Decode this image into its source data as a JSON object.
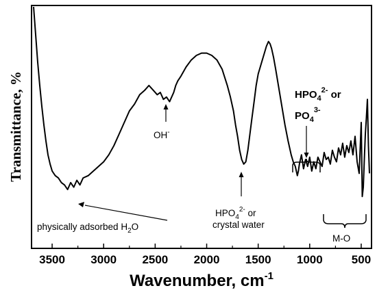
{
  "chart_data": {
    "type": "line",
    "xlabel": "Wavenumber, cm",
    "xlabel_sup": "-1",
    "ylabel": "Transmittance, %",
    "xlim": [
      3700,
      400
    ],
    "x_inverted": true,
    "xticks": [
      3500,
      3000,
      2500,
      2000,
      1500,
      1000,
      500
    ],
    "y_ticks_shown": false,
    "grid": false,
    "series": [
      {
        "color": "#000000",
        "x": [
          3680,
          3660,
          3640,
          3620,
          3600,
          3580,
          3560,
          3540,
          3520,
          3500,
          3470,
          3440,
          3410,
          3380,
          3350,
          3320,
          3290,
          3260,
          3230,
          3200,
          3150,
          3100,
          3050,
          3000,
          2950,
          2900,
          2850,
          2800,
          2750,
          2700,
          2650,
          2600,
          2560,
          2520,
          2480,
          2450,
          2420,
          2390,
          2360,
          2340,
          2320,
          2300,
          2280,
          2250,
          2200,
          2150,
          2100,
          2050,
          2000,
          1950,
          1900,
          1850,
          1800,
          1770,
          1740,
          1720,
          1700,
          1680,
          1660,
          1640,
          1620,
          1600,
          1580,
          1560,
          1540,
          1520,
          1500,
          1480,
          1460,
          1440,
          1420,
          1400,
          1385,
          1370,
          1350,
          1330,
          1300,
          1270,
          1240,
          1210,
          1180,
          1160,
          1140,
          1120,
          1110,
          1100,
          1080,
          1060,
          1040,
          1020,
          1000,
          980,
          960,
          940,
          920,
          900,
          880,
          860,
          840,
          820,
          800,
          780,
          760,
          740,
          720,
          700,
          680,
          660,
          640,
          620,
          600,
          580,
          560,
          540,
          520,
          500,
          490,
          480,
          470,
          460,
          450,
          440,
          430,
          420
        ],
        "y": [
          100,
          88,
          76,
          66,
          57,
          49,
          42,
          36,
          32,
          29,
          27,
          26,
          24,
          23,
          21,
          24,
          22,
          25,
          23,
          26,
          27,
          29,
          31,
          33,
          36,
          40,
          45,
          50,
          55,
          58,
          62,
          64,
          66,
          64,
          62,
          63,
          60,
          61,
          59,
          61,
          63,
          66,
          68,
          70,
          74,
          77,
          79,
          80,
          80,
          79,
          77,
          73,
          66,
          61,
          55,
          49,
          44,
          38,
          34,
          32,
          33,
          38,
          45,
          52,
          59,
          66,
          71,
          74,
          77,
          80,
          83,
          85,
          84,
          82,
          78,
          73,
          65,
          57,
          49,
          42,
          36,
          33,
          31,
          27,
          29,
          32,
          36,
          30,
          34,
          31,
          35,
          29,
          33,
          30,
          35,
          33,
          31,
          37,
          34,
          35,
          32,
          38,
          35,
          33,
          39,
          36,
          41,
          35,
          40,
          37,
          42,
          36,
          44,
          33,
          28,
          50,
          18,
          22,
          34,
          45,
          52,
          60,
          40,
          28
        ]
      }
    ],
    "annotations": [
      {
        "text": "OH",
        "sup": "-"
      },
      {
        "text": "physically adsorbed H",
        "sub": "2",
        "tail": "O"
      },
      {
        "line1_pre": "HPO",
        "line1_sub": "4",
        "line1_sup": "2-",
        "line1_post": " or",
        "line2": "crystal water"
      },
      {
        "line1_pre": "HPO",
        "line1_sub": "4",
        "line1_sup": "2-",
        "line1_post": " or",
        "line2_pre": "PO",
        "line2_sub": "4",
        "line2_sup": "3-"
      },
      {
        "text": "M-O"
      }
    ]
  }
}
